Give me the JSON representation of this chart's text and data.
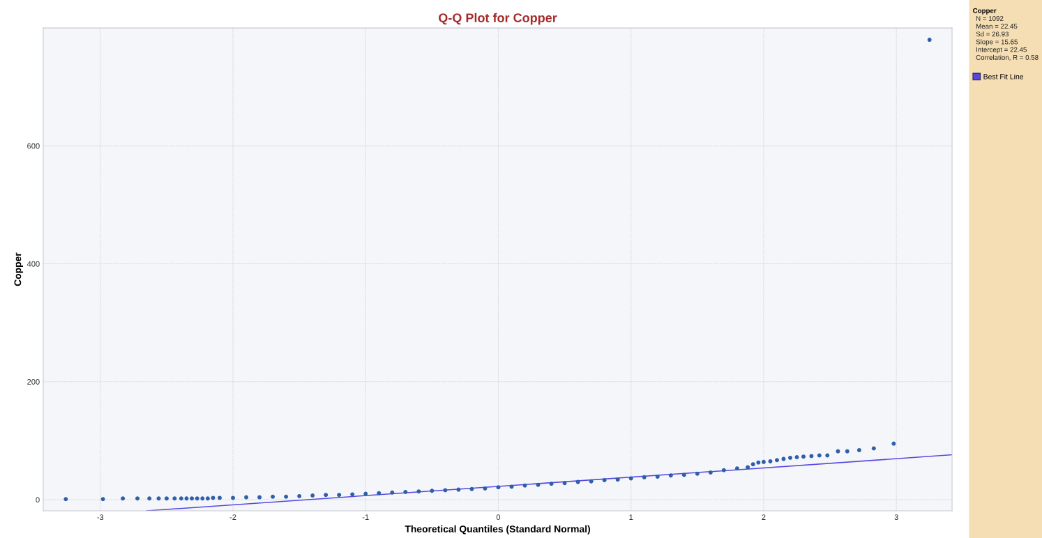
{
  "chart_data": {
    "type": "scatter",
    "title": "Q-Q Plot for Copper",
    "xlabel": "Theoretical Quantiles (Standard Normal)",
    "ylabel": "Copper",
    "annotations": [
      "Copper",
      "N = 1092",
      "Mean = 22.45",
      "Sd = 26.93",
      "Slope = 15.65",
      "Intercept = 22.45",
      "Correlation, R = 0.58"
    ],
    "series": [
      {
        "color": "#2f5fa8",
        "x": [
          -3.26,
          -2.98,
          -2.83,
          -2.72,
          -2.63,
          -2.56,
          -2.5,
          -2.44,
          -2.39,
          -2.35,
          -2.31,
          -2.27,
          -2.23,
          -2.19,
          -2.15,
          -2.1,
          -2.0,
          -1.9,
          -1.8,
          -1.7,
          -1.6,
          -1.5,
          -1.4,
          -1.3,
          -1.2,
          -1.1,
          -1.0,
          -0.9,
          -0.8,
          -0.7,
          -0.6,
          -0.5,
          -0.4,
          -0.3,
          -0.2,
          -0.1,
          0,
          0.1,
          0.2,
          0.3,
          0.4,
          0.5,
          0.6,
          0.7,
          0.8,
          0.9,
          1.0,
          1.1,
          1.2,
          1.3,
          1.4,
          1.5,
          1.6,
          1.7,
          1.8,
          1.88,
          1.92,
          1.96,
          2.0,
          2.05,
          2.1,
          2.15,
          2.2,
          2.25,
          2.3,
          2.36,
          2.42,
          2.48,
          2.56,
          2.63,
          2.72,
          2.83,
          2.98,
          3.25
        ],
        "values": [
          1,
          1,
          2,
          2,
          2,
          2,
          2,
          2,
          2,
          2,
          2,
          2,
          2,
          2,
          3,
          3,
          3,
          4,
          4,
          5,
          5,
          6,
          7,
          8,
          8,
          9,
          10,
          11,
          12,
          13,
          14,
          15,
          16,
          17,
          18,
          19,
          21,
          22,
          24,
          25,
          27,
          28,
          30,
          31,
          33,
          34,
          36,
          38,
          39,
          41,
          42,
          44,
          46,
          50,
          53,
          55,
          60,
          63,
          64,
          65,
          67,
          69,
          71,
          72,
          73,
          74,
          75,
          75,
          82,
          82,
          84,
          87,
          95,
          780
        ]
      },
      {
        "type": "line",
        "marker": "none",
        "name": "Best Fit Line",
        "color": "#5548e0",
        "x": [
          -2.65,
          3.42
        ],
        "values": [
          -19,
          76
        ]
      }
    ],
    "marker": "circle",
    "xlim": [
      -3.43,
      3.42
    ],
    "ylim": [
      -19,
      800
    ],
    "xticks": [
      -3,
      -2,
      -1,
      0,
      1,
      2,
      3
    ],
    "yticks": [
      0,
      200,
      400,
      600
    ],
    "grid": true,
    "legend": "right"
  }
}
